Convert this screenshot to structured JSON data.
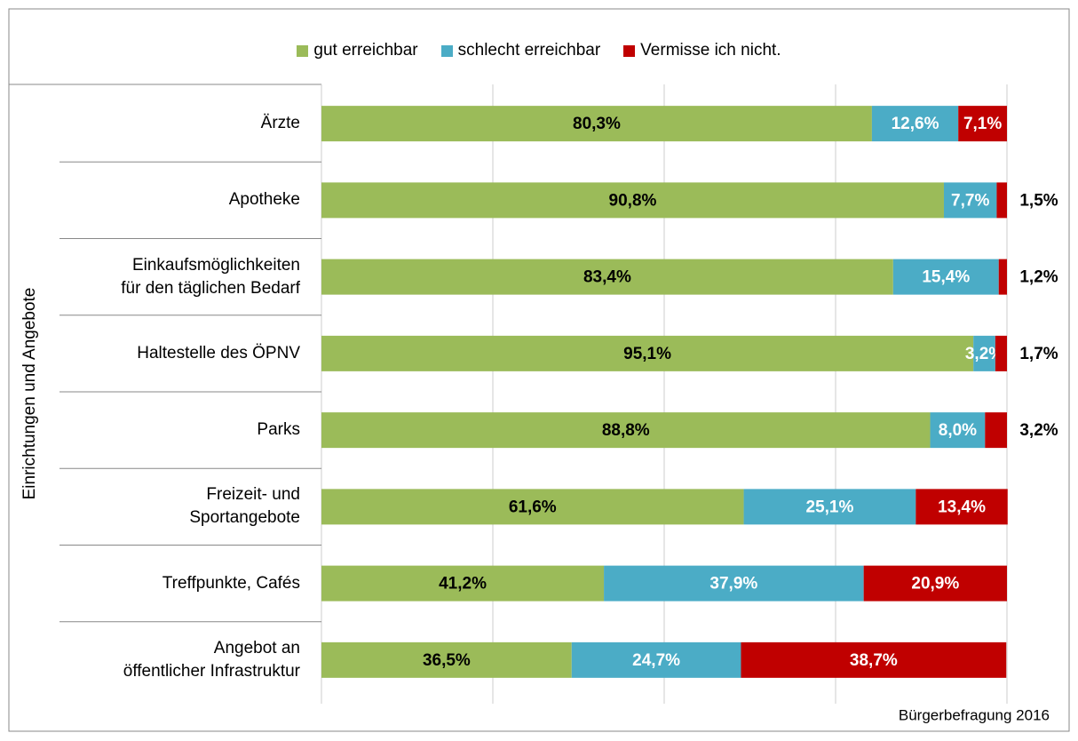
{
  "chart_data": {
    "type": "stacked-bar-horizontal",
    "y_axis_label": "Einrichtungen und Angebote",
    "source": "Bürgerbefragung 2016",
    "categories": [
      "Ärzte",
      "Apotheke",
      "Einkaufsmöglichkeiten\nfür den täglichen Bedarf",
      "Haltestelle des ÖPNV",
      "Parks",
      "Freizeit- und\nSportangebote",
      "Treffpunkte, Cafés",
      "Angebot an\nöffentlicher Infrastruktur"
    ],
    "series": [
      {
        "name": "gut erreichbar",
        "color": "#9bbb59",
        "values": [
          80.3,
          90.8,
          83.4,
          95.1,
          88.8,
          61.6,
          41.2,
          36.5
        ],
        "value_labels": [
          "80,3%",
          "90,8%",
          "83,4%",
          "95,1%",
          "88,8%",
          "61,6%",
          "41,2%",
          "36,5%"
        ]
      },
      {
        "name": "schlecht erreichbar",
        "color": "#4bacc6",
        "values": [
          12.6,
          7.7,
          15.4,
          3.2,
          8.0,
          25.1,
          37.9,
          24.7
        ],
        "value_labels": [
          "12,6%",
          "7,7%",
          "15,4%",
          "3,2%",
          "8,0%",
          "25,1%",
          "37,9%",
          "24,7%"
        ]
      },
      {
        "name": "Vermisse ich nicht.",
        "color": "#c00000",
        "values": [
          7.1,
          1.5,
          1.2,
          1.7,
          3.2,
          13.4,
          20.9,
          38.7
        ],
        "value_labels": [
          "7,1%",
          "1,5%",
          "1,2%",
          "1,7%",
          "3,2%",
          "13,4%",
          "20,9%",
          "38,7%"
        ]
      }
    ],
    "xlim": [
      0,
      100
    ],
    "xticks": [
      0,
      25,
      50,
      75,
      100
    ],
    "grid": true
  }
}
